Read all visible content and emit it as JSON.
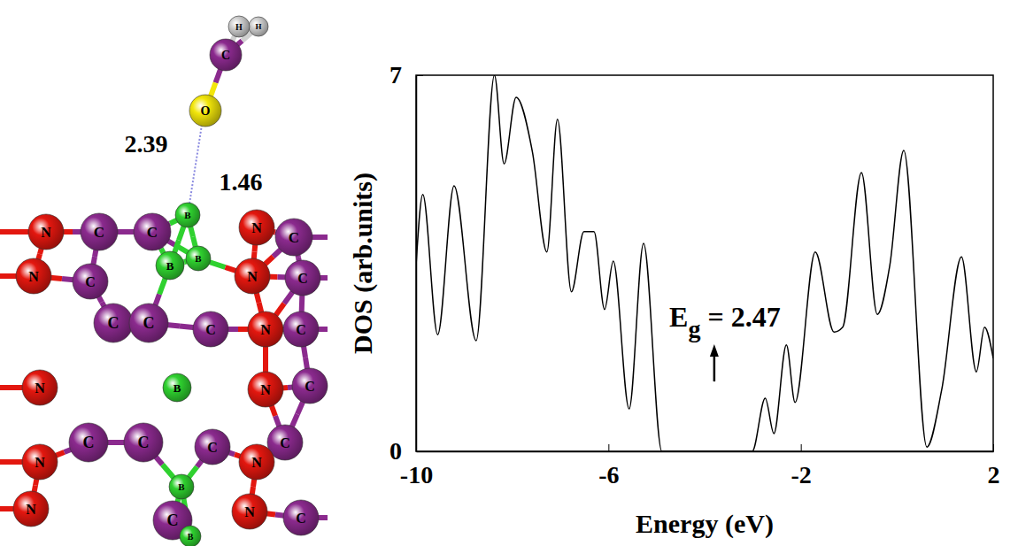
{
  "chart_data": {
    "type": "line",
    "x_label": "Energy (eV)",
    "y_label": "DOS (arb.units)",
    "x": [
      -10.0,
      -9.86,
      -9.55,
      -9.21,
      -8.75,
      -8.37,
      -8.17,
      -7.92,
      -7.58,
      -7.28,
      -7.06,
      -6.77,
      -6.51,
      -6.3,
      -6.08,
      -5.9,
      -5.57,
      -5.27,
      -4.89,
      -4.7,
      -3.2,
      -3.01,
      -2.74,
      -2.56,
      -2.3,
      -2.12,
      -1.7,
      -1.31,
      -1.13,
      -0.74,
      -0.41,
      -0.15,
      0.14,
      0.62,
      0.93,
      1.34,
      1.65,
      1.82,
      2.0
    ],
    "series": [
      {
        "color": "#000000",
        "values": [
          3.46,
          4.78,
          2.17,
          4.94,
          2.06,
          7.0,
          5.35,
          6.59,
          5.57,
          3.71,
          6.18,
          2.97,
          4.09,
          4.09,
          2.64,
          3.54,
          0.79,
          3.87,
          0.0,
          0.0,
          0.0,
          0.0,
          0.99,
          0.33,
          1.98,
          0.91,
          3.71,
          2.22,
          2.31,
          5.19,
          2.55,
          3.46,
          5.6,
          0.08,
          1.15,
          3.62,
          1.48,
          2.31,
          1.73
        ]
      }
    ],
    "xlim": [
      -10,
      2
    ],
    "xticks": [
      -10,
      -6,
      -2,
      2
    ],
    "ylim": [
      0,
      7
    ],
    "yticks": [
      0,
      7
    ],
    "grid": false,
    "annotations": [
      {
        "text": "E",
        "subscript": "g",
        "suffix": "= 2.47",
        "x": -3.8,
        "y": 1.3
      }
    ]
  },
  "structure": {
    "atoms": [
      "H",
      "H",
      "C",
      "O",
      "N",
      "C",
      "C",
      "B",
      "N",
      "C",
      "N",
      "C",
      "B",
      "B",
      "N",
      "C",
      "C",
      "C",
      "C",
      "N",
      "C",
      "N",
      "B",
      "N",
      "C",
      "C",
      "C",
      "C",
      "C",
      "N",
      "N",
      "B",
      "N",
      "C",
      "N",
      "C",
      "B"
    ],
    "bond_lengths": [
      2.39,
      1.46
    ]
  }
}
